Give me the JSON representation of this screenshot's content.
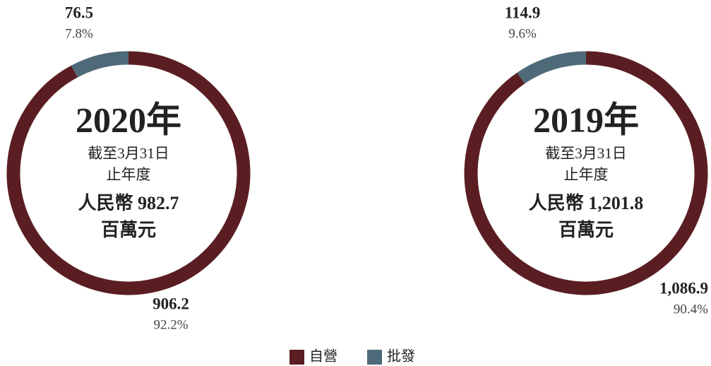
{
  "chart_data": [
    {
      "type": "donut",
      "title": "2020年",
      "subtitle": [
        "截至3月31日",
        "止年度"
      ],
      "total_text": [
        "人民幣 982.7",
        "百萬元"
      ],
      "categories": [
        "自營",
        "批發"
      ],
      "values": [
        906.2,
        76.5
      ],
      "percent_labels": [
        "92.2%",
        "7.8%"
      ],
      "colors": [
        "#5a1e22",
        "#4e6a78"
      ]
    },
    {
      "type": "donut",
      "title": "2019年",
      "subtitle": [
        "截至3月31日",
        "止年度"
      ],
      "total_text": [
        "人民幣 1,201.8",
        "百萬元"
      ],
      "categories": [
        "自營",
        "批發"
      ],
      "values": [
        1086.9,
        114.9
      ],
      "value_labels": [
        "1,086.9",
        "114.9"
      ],
      "percent_labels": [
        "90.4%",
        "9.6%"
      ],
      "colors": [
        "#5a1e22",
        "#4e6a78"
      ]
    }
  ]
}
